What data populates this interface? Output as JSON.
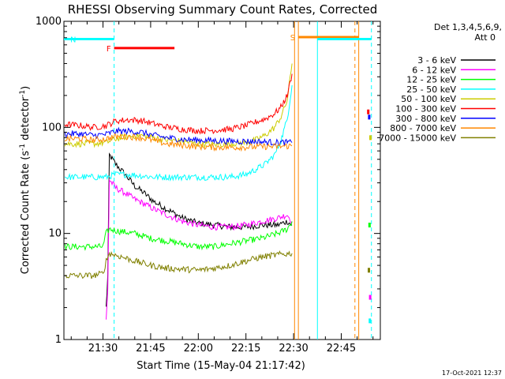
{
  "chart_data": {
    "type": "line",
    "title": "RHESSI Observing Summary Count Rates, Corrected",
    "xlabel": "Start Time (15-May-04 21:17:42)",
    "ylabel_main": "Corrected Count Rate (s",
    "ylabel_sup1": "-1",
    "ylabel_mid": " detector",
    "ylabel_sup2": "-1",
    "ylabel_end": ")",
    "yscale": "log",
    "ylim": [
      1,
      1000
    ],
    "xlim_minutes": [
      1277.7,
      1377.3
    ],
    "x_ticks": [
      {
        "label": "21:30",
        "minute": 1290
      },
      {
        "label": "21:45",
        "minute": 1305
      },
      {
        "label": "22:00",
        "minute": 1320
      },
      {
        "label": "22:15",
        "minute": 1335
      },
      {
        "label": "22:30",
        "minute": 1350
      },
      {
        "label": "22:45",
        "minute": 1365
      }
    ],
    "y_ticks": [
      {
        "label": "1",
        "value": 1
      },
      {
        "label": "10",
        "value": 10
      },
      {
        "label": "100",
        "value": 100
      },
      {
        "label": "1000",
        "value": 1000
      }
    ],
    "legend_header_1": "Det 1,3,4,5,6,9,",
    "legend_header_2": "Att 0",
    "legend_position": "outside-right-top",
    "series": [
      {
        "name": "3 - 6 keV",
        "color": "#000000",
        "points": [
          [
            1291.0,
            2
          ],
          [
            1291.5,
            4
          ],
          [
            1292.0,
            55
          ],
          [
            1294,
            45
          ],
          [
            1297,
            36
          ],
          [
            1300,
            28
          ],
          [
            1303,
            24
          ],
          [
            1306,
            20
          ],
          [
            1310,
            17
          ],
          [
            1315,
            14
          ],
          [
            1320,
            12.5
          ],
          [
            1325,
            12
          ],
          [
            1330,
            11.5
          ],
          [
            1335,
            11.5
          ],
          [
            1340,
            12
          ],
          [
            1345,
            12
          ],
          [
            1348,
            13
          ],
          [
            1349.5,
            12
          ]
        ]
      },
      {
        "name": "6 - 12 keV",
        "color": "#ff00ff",
        "points": [
          [
            1291.0,
            1.5
          ],
          [
            1291.5,
            3
          ],
          [
            1292.0,
            32
          ],
          [
            1294,
            27
          ],
          [
            1297,
            24
          ],
          [
            1300,
            21
          ],
          [
            1303,
            19
          ],
          [
            1306,
            17
          ],
          [
            1310,
            15
          ],
          [
            1315,
            13
          ],
          [
            1320,
            12
          ],
          [
            1325,
            11.5
          ],
          [
            1330,
            11.5
          ],
          [
            1335,
            12
          ],
          [
            1340,
            13
          ],
          [
            1345,
            14
          ],
          [
            1348,
            15
          ],
          [
            1349.5,
            13
          ]
        ]
      },
      {
        "name": "12 - 25 keV",
        "color": "#00ff00",
        "points": [
          [
            1278,
            7.5
          ],
          [
            1285,
            7.5
          ],
          [
            1290,
            7.5
          ],
          [
            1291,
            10
          ],
          [
            1292,
            11
          ],
          [
            1295,
            10.5
          ],
          [
            1300,
            10
          ],
          [
            1305,
            9
          ],
          [
            1310,
            8.5
          ],
          [
            1315,
            8
          ],
          [
            1320,
            7.5
          ],
          [
            1325,
            7.5
          ],
          [
            1330,
            8
          ],
          [
            1335,
            8.5
          ],
          [
            1340,
            9
          ],
          [
            1345,
            10
          ],
          [
            1348,
            11
          ],
          [
            1349.5,
            13
          ]
        ]
      },
      {
        "name": "25 - 50 keV",
        "color": "#00ffff",
        "points": [
          [
            1278,
            34
          ],
          [
            1283,
            34
          ],
          [
            1287,
            34
          ],
          [
            1291,
            34
          ],
          [
            1294,
            36
          ],
          [
            1298,
            36
          ],
          [
            1302,
            35
          ],
          [
            1306,
            34
          ],
          [
            1310,
            34
          ],
          [
            1315,
            34
          ],
          [
            1320,
            34
          ],
          [
            1325,
            34
          ],
          [
            1330,
            34
          ],
          [
            1335,
            36
          ],
          [
            1338,
            40
          ],
          [
            1341,
            45
          ],
          [
            1344,
            55
          ],
          [
            1346,
            75
          ],
          [
            1348,
            120
          ],
          [
            1349.5,
            250
          ]
        ]
      },
      {
        "name": "50 - 100 keV",
        "color": "#cccc00",
        "points": [
          [
            1278,
            70
          ],
          [
            1283,
            70
          ],
          [
            1287,
            70
          ],
          [
            1291,
            72
          ],
          [
            1294,
            78
          ],
          [
            1298,
            82
          ],
          [
            1302,
            84
          ],
          [
            1306,
            80
          ],
          [
            1310,
            76
          ],
          [
            1315,
            74
          ],
          [
            1320,
            70
          ],
          [
            1325,
            69
          ],
          [
            1330,
            70
          ],
          [
            1335,
            72
          ],
          [
            1338,
            76
          ],
          [
            1341,
            84
          ],
          [
            1344,
            100
          ],
          [
            1346,
            125
          ],
          [
            1348,
            180
          ],
          [
            1349.5,
            400
          ]
        ]
      },
      {
        "name": "100 - 300 keV",
        "color": "#ff0000",
        "points": [
          [
            1278,
            107
          ],
          [
            1283,
            104
          ],
          [
            1287,
            100
          ],
          [
            1291,
            104
          ],
          [
            1294,
            115
          ],
          [
            1298,
            118
          ],
          [
            1302,
            116
          ],
          [
            1306,
            108
          ],
          [
            1310,
            101
          ],
          [
            1315,
            96
          ],
          [
            1320,
            93
          ],
          [
            1325,
            94
          ],
          [
            1330,
            96
          ],
          [
            1335,
            104
          ],
          [
            1338,
            112
          ],
          [
            1341,
            120
          ],
          [
            1344,
            135
          ],
          [
            1346,
            155
          ],
          [
            1348,
            200
          ],
          [
            1349.5,
            320
          ]
        ]
      },
      {
        "name": "300 - 800 keV",
        "color": "#0000ff",
        "points": [
          [
            1278,
            87
          ],
          [
            1283,
            87
          ],
          [
            1287,
            84
          ],
          [
            1291,
            86
          ],
          [
            1294,
            92
          ],
          [
            1298,
            92
          ],
          [
            1302,
            90
          ],
          [
            1306,
            84
          ],
          [
            1310,
            80
          ],
          [
            1315,
            77
          ],
          [
            1320,
            76
          ],
          [
            1325,
            75
          ],
          [
            1330,
            74
          ],
          [
            1335,
            74
          ],
          [
            1340,
            73
          ],
          [
            1345,
            72
          ],
          [
            1349.5,
            72
          ]
        ]
      },
      {
        "name": "800 - 7000 keV",
        "color": "#ff8800",
        "points": [
          [
            1278,
            78
          ],
          [
            1283,
            78
          ],
          [
            1287,
            76
          ],
          [
            1291,
            78
          ],
          [
            1294,
            82
          ],
          [
            1298,
            82
          ],
          [
            1302,
            80
          ],
          [
            1306,
            75
          ],
          [
            1310,
            70
          ],
          [
            1315,
            68
          ],
          [
            1320,
            66
          ],
          [
            1325,
            65
          ],
          [
            1330,
            65
          ],
          [
            1335,
            65
          ],
          [
            1340,
            66
          ],
          [
            1345,
            66
          ],
          [
            1349.5,
            67
          ]
        ]
      },
      {
        "name": "7000 - 15000 keV",
        "color": "#808000",
        "points": [
          [
            1278,
            4
          ],
          [
            1283,
            4
          ],
          [
            1287,
            4
          ],
          [
            1290,
            4.2
          ],
          [
            1291,
            5.5
          ],
          [
            1292,
            6.5
          ],
          [
            1296,
            6
          ],
          [
            1300,
            5.5
          ],
          [
            1305,
            5
          ],
          [
            1310,
            4.7
          ],
          [
            1315,
            4.6
          ],
          [
            1320,
            4.5
          ],
          [
            1325,
            4.7
          ],
          [
            1330,
            5
          ],
          [
            1335,
            5.5
          ],
          [
            1340,
            6
          ],
          [
            1345,
            6.3
          ],
          [
            1349.5,
            6.5
          ]
        ]
      }
    ],
    "post_gap_points": [
      {
        "color": "#ff0000",
        "value": 140,
        "minute": 1373.5
      },
      {
        "color": "#0000ff",
        "value": 125,
        "minute": 1373.8
      },
      {
        "color": "#cccc00",
        "value": 80,
        "minute": 1374.2
      },
      {
        "color": "#00ff00",
        "value": 12,
        "minute": 1373.9
      },
      {
        "color": "#00ffff",
        "value": 1.5,
        "minute": 1374.0
      },
      {
        "color": "#ff00ff",
        "value": 2.5,
        "minute": 1374.1
      },
      {
        "color": "#808000",
        "value": 4.5,
        "minute": 1373.7
      }
    ],
    "flags": [
      {
        "label": "N",
        "color": "#00ffff",
        "level": 680,
        "start": 1277.7,
        "end": 1293.5
      },
      {
        "label": "F",
        "color": "#ff0000",
        "level": 560,
        "start": 1293.5,
        "end": 1312.5
      },
      {
        "label": "S",
        "color": "#ff8800",
        "level": 710,
        "start": 1351.5,
        "end": 1370.5
      },
      {
        "label": "",
        "color": "#00ffff",
        "level": 680,
        "start": 1357.5,
        "end": 1374.5
      }
    ],
    "vertical_lines": [
      {
        "minute": 1293.5,
        "color": "#00ffff",
        "dashed": true
      },
      {
        "minute": 1350.3,
        "color": "#ff8800",
        "dashed": false
      },
      {
        "minute": 1351.5,
        "color": "#ff8800",
        "dashed": false
      },
      {
        "minute": 1357.5,
        "color": "#00ffff",
        "dashed": false
      },
      {
        "minute": 1369.3,
        "color": "#ff8800",
        "dashed": true
      },
      {
        "minute": 1370.5,
        "color": "#ff8800",
        "dashed": false
      },
      {
        "minute": 1374.5,
        "color": "#00ffff",
        "dashed": true
      }
    ],
    "footer_date": "17-Oct-2021 12:37"
  }
}
